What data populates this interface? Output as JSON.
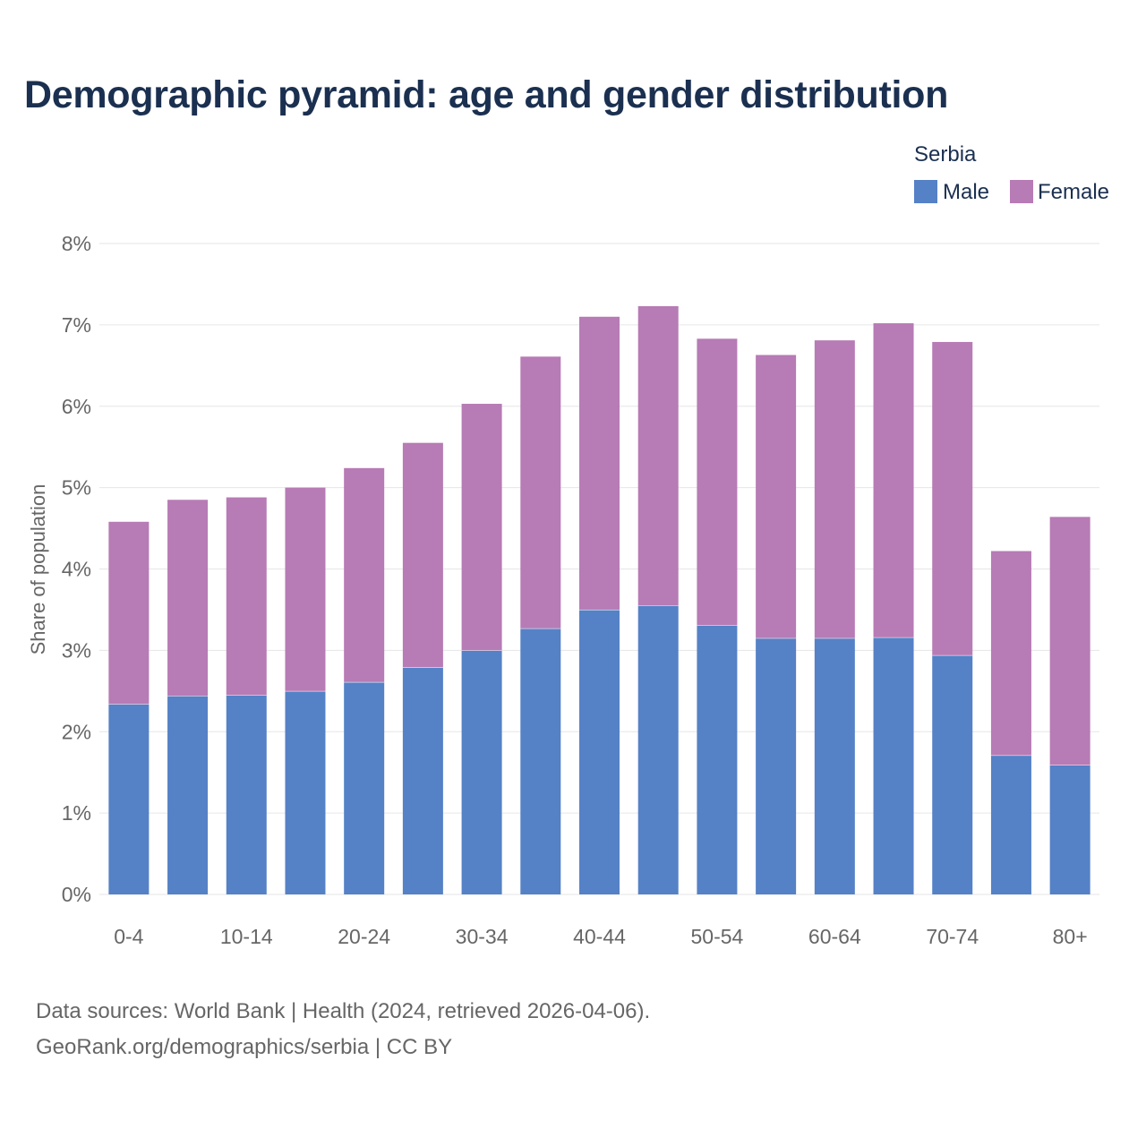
{
  "title": "Demographic pyramid: age and gender distribution",
  "legend": {
    "title": "Serbia",
    "items": [
      {
        "label": "Male",
        "color": "#5581c6"
      },
      {
        "label": "Female",
        "color": "#b77bb5"
      }
    ]
  },
  "footer": {
    "source": "Data sources: World Bank | Health (2024, retrieved 2026-04-06).",
    "credit": "GeoRank.org/demographics/serbia | CC BY"
  },
  "chart_data": {
    "type": "bar",
    "stacked": true,
    "title": "Demographic pyramid: age and gender distribution",
    "xlabel": "",
    "ylabel": "Share of population",
    "ylim": [
      0,
      8
    ],
    "yticks": [
      "0%",
      "1%",
      "2%",
      "3%",
      "4%",
      "5%",
      "6%",
      "7%",
      "8%"
    ],
    "categories": [
      "0-4",
      "5-9",
      "10-14",
      "15-19",
      "20-24",
      "25-29",
      "30-34",
      "35-39",
      "40-44",
      "45-49",
      "50-54",
      "55-59",
      "60-64",
      "65-69",
      "70-74",
      "75-79",
      "80+"
    ],
    "xtick_labels_shown": [
      "0-4",
      "10-14",
      "20-24",
      "30-34",
      "40-44",
      "50-54",
      "60-64",
      "70-74",
      "80+"
    ],
    "series": [
      {
        "name": "Male",
        "color": "#5581c6",
        "values": [
          2.34,
          2.44,
          2.45,
          2.5,
          2.61,
          2.79,
          3.0,
          3.27,
          3.5,
          3.55,
          3.31,
          3.15,
          3.15,
          3.16,
          2.94,
          1.71,
          1.59
        ]
      },
      {
        "name": "Female",
        "color": "#b77bb5",
        "values": [
          2.24,
          2.41,
          2.43,
          2.5,
          2.63,
          2.76,
          3.03,
          3.34,
          3.6,
          3.68,
          3.52,
          3.48,
          3.66,
          3.86,
          3.85,
          2.51,
          3.05
        ]
      }
    ],
    "grid": true,
    "legend_position": "top-right"
  }
}
